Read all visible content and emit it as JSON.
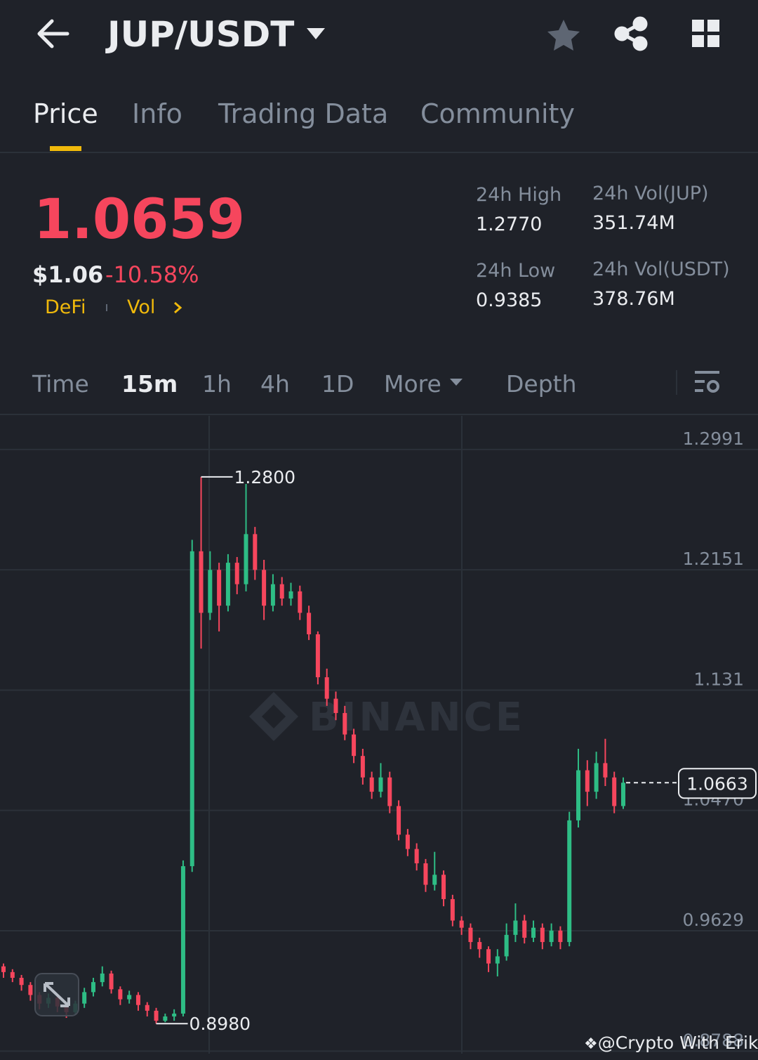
{
  "header": {
    "pair": "JUP/USDT"
  },
  "tabs": [
    "Price",
    "Info",
    "Trading Data",
    "Community"
  ],
  "ticker": {
    "last": "1.0659",
    "usd": "$1.06",
    "change": "-10.58%",
    "tags": [
      "DeFi",
      "Vol"
    ]
  },
  "stats": [
    {
      "label": "24h High",
      "value": "1.2770"
    },
    {
      "label": "24h Vol(JUP)",
      "value": "351.74M"
    },
    {
      "label": "24h Low",
      "value": "0.9385"
    },
    {
      "label": "24h Vol(USDT)",
      "value": "378.76M"
    }
  ],
  "intervals": [
    "Time",
    "15m",
    "1h",
    "4h",
    "1D",
    "More",
    "Depth"
  ],
  "chart_data": {
    "type": "candlestick",
    "up_color": "#2ebd85",
    "down_color": "#f6465d",
    "grid": true,
    "ylim": [
      0.877,
      1.3236
    ],
    "yticks": [
      1.2991,
      1.2151,
      1.131,
      {
        "value": 1.047,
        "label": "1.0470"
      },
      0.9629,
      0.8788
    ],
    "open": [
      0.938,
      0.934,
      0.93,
      0.925,
      0.918,
      0.912,
      0.916,
      0.91,
      0.906,
      0.912,
      0.92,
      0.927,
      0.933,
      0.922,
      0.915,
      0.918,
      0.911,
      0.907,
      0.9,
      0.903,
      0.905,
      1.008,
      1.228,
      1.185,
      1.215,
      1.19,
      1.22,
      1.205,
      1.24,
      1.215,
      1.19,
      1.205,
      1.195,
      1.2,
      1.185,
      1.17,
      1.14,
      1.125,
      1.115,
      1.1,
      1.085,
      1.07,
      1.06,
      1.07,
      1.05,
      1.03,
      1.02,
      1.01,
      0.995,
      1.002,
      0.985,
      0.97,
      0.965,
      0.955,
      0.95,
      0.94,
      0.945,
      0.96,
      0.97,
      0.958,
      0.965,
      0.955,
      0.963,
      0.955,
      1.04,
      1.075,
      1.06,
      1.08,
      1.07,
      1.05
    ],
    "high": [
      0.94,
      0.936,
      0.932,
      0.927,
      0.92,
      0.919,
      0.918,
      0.912,
      0.914,
      0.923,
      0.93,
      0.938,
      0.935,
      0.924,
      0.921,
      0.92,
      0.913,
      0.909,
      0.905,
      0.908,
      1.012,
      1.236,
      1.28,
      1.228,
      1.22,
      1.226,
      1.224,
      1.275,
      1.245,
      1.222,
      1.212,
      1.21,
      1.206,
      1.204,
      1.19,
      1.172,
      1.146,
      1.13,
      1.12,
      1.104,
      1.09,
      1.074,
      1.08,
      1.074,
      1.054,
      1.034,
      1.024,
      1.013,
      1.018,
      1.005,
      0.988,
      0.973,
      0.968,
      0.958,
      0.952,
      0.95,
      0.968,
      0.982,
      0.974,
      0.97,
      0.968,
      0.968,
      0.966,
      1.046,
      1.09,
      1.082,
      1.088,
      1.097,
      1.074,
      1.07
    ],
    "low": [
      0.93,
      0.927,
      0.921,
      0.914,
      0.908,
      0.909,
      0.906,
      0.902,
      0.904,
      0.909,
      0.917,
      0.924,
      0.919,
      0.911,
      0.912,
      0.907,
      0.903,
      0.898,
      0.899,
      0.9,
      0.903,
      1.004,
      1.16,
      1.18,
      1.172,
      1.186,
      1.198,
      1.2,
      1.208,
      1.18,
      1.186,
      1.19,
      1.19,
      1.18,
      1.166,
      1.135,
      1.12,
      1.11,
      1.096,
      1.08,
      1.065,
      1.055,
      1.056,
      1.045,
      1.026,
      1.015,
      1.005,
      0.99,
      0.991,
      0.98,
      0.966,
      0.96,
      0.95,
      0.944,
      0.934,
      0.931,
      0.942,
      0.955,
      0.954,
      0.955,
      0.95,
      0.952,
      0.95,
      0.952,
      1.035,
      1.05,
      1.055,
      1.064,
      1.045,
      1.048
    ],
    "close": [
      0.934,
      0.93,
      0.925,
      0.918,
      0.912,
      0.916,
      0.91,
      0.906,
      0.912,
      0.92,
      0.927,
      0.933,
      0.922,
      0.915,
      0.918,
      0.911,
      0.907,
      0.9,
      0.903,
      0.905,
      1.008,
      1.228,
      1.185,
      1.215,
      1.19,
      1.22,
      1.205,
      1.24,
      1.215,
      1.19,
      1.205,
      1.195,
      1.2,
      1.185,
      1.17,
      1.14,
      1.125,
      1.115,
      1.1,
      1.085,
      1.07,
      1.06,
      1.07,
      1.05,
      1.03,
      1.02,
      1.01,
      0.995,
      1.002,
      0.985,
      0.97,
      0.965,
      0.955,
      0.95,
      0.94,
      0.945,
      0.96,
      0.97,
      0.958,
      0.965,
      0.955,
      0.963,
      0.955,
      1.04,
      1.075,
      1.06,
      1.08,
      1.07,
      1.05,
      1.0663
    ],
    "annotations": [
      {
        "value": 1.28,
        "label": "1.2800"
      },
      {
        "value": 0.898,
        "label": "0.8980"
      }
    ],
    "last_price": {
      "value": 1.0663,
      "label": "1.0663"
    }
  },
  "watermark": "BINANCE",
  "credit": "@Crypto With Erik"
}
